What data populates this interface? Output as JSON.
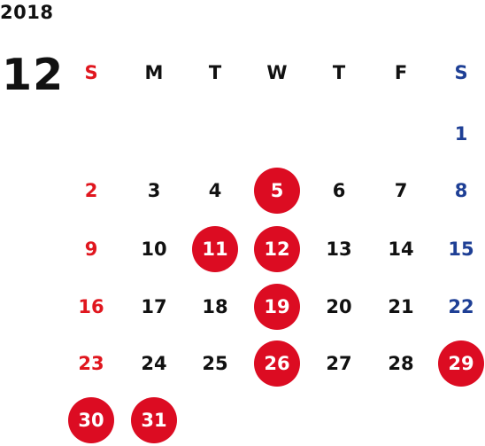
{
  "calendar": {
    "year": "2018",
    "month": "12",
    "weekday_labels": [
      "S",
      "M",
      "T",
      "W",
      "T",
      "F",
      "S"
    ],
    "first_weekday_index": 6,
    "days_in_month": 31,
    "highlighted_days": [
      5,
      11,
      12,
      19,
      26,
      29,
      30,
      31
    ],
    "colors": {
      "sunday": "#e0161e",
      "saturday": "#1e3f95",
      "weekday": "#111111",
      "highlight_bg": "#dc0c22",
      "highlight_text": "#ffffff"
    }
  }
}
